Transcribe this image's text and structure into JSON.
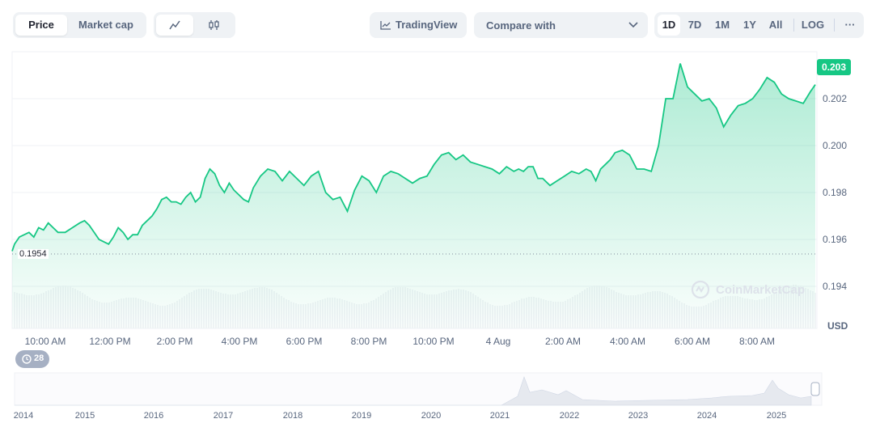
{
  "view_tabs": [
    "Price",
    "Market cap"
  ],
  "chart_type_buttons": [
    "line-chart-icon",
    "candlestick-icon"
  ],
  "tradingview_label": "TradingView",
  "compare_label": "Compare with",
  "range_tabs": [
    "1D",
    "7D",
    "1M",
    "1Y",
    "All"
  ],
  "log_label": "LOG",
  "more_label": "···",
  "colors": {
    "line": "#16c784",
    "price_tag_bg": "#16c784",
    "text": "#58667e"
  },
  "price_tag": "0.203",
  "start_price_label": "0.1954",
  "watermark": "CoinMarketCap",
  "currency": "USD",
  "events_badge": "28",
  "chart_data": {
    "type": "area",
    "y_ticks": [
      "0.202",
      "0.200",
      "0.198",
      "0.196",
      "0.194"
    ],
    "x_ticks": [
      "10:00 AM",
      "12:00 PM",
      "2:00 PM",
      "4:00 PM",
      "6:00 PM",
      "8:00 PM",
      "10:00 PM",
      "4 Aug",
      "2:00 AM",
      "4:00 AM",
      "6:00 AM",
      "8:00 AM"
    ],
    "ylim": [
      0.1935,
      0.2035
    ],
    "last_value": 0.203,
    "start_value": 0.1954,
    "series": [
      {
        "x_hours": [
          0,
          0.1,
          0.3,
          0.5,
          0.7,
          0.9,
          1.1,
          1.3,
          1.5,
          1.7,
          1.9,
          2.2,
          2.5,
          2.8,
          3.0,
          3.2,
          3.4,
          3.6,
          3.8,
          4.0,
          4.2,
          4.4,
          4.6,
          4.8,
          5.0,
          5.2,
          5.4,
          5.6,
          5.8,
          6.0,
          6.2,
          6.4,
          6.6,
          6.8,
          7.0,
          7.2,
          7.4,
          7.6,
          7.8,
          8.0,
          8.2,
          8.4,
          8.6,
          8.8,
          9.0,
          9.2,
          9.4,
          9.6,
          9.8,
          10.0,
          10.3,
          10.6,
          10.9,
          11.2,
          11.5,
          11.8,
          12.1,
          12.4,
          12.7,
          13.0,
          13.3,
          13.6,
          13.9,
          14.2,
          14.5,
          14.8,
          15.1,
          15.4,
          15.7,
          16.0,
          16.3,
          16.6,
          16.9,
          17.2,
          17.5,
          17.8,
          18.1,
          18.4,
          18.7,
          19.0,
          19.3,
          19.6,
          19.9,
          20.2,
          20.5,
          20.8,
          21.0,
          21.2,
          21.4,
          21.6,
          21.8,
          22.0,
          22.3,
          22.6,
          22.9,
          23.2,
          23.5,
          23.8,
          24.0,
          24.1,
          24.2,
          24.4,
          24.6,
          24.8,
          25.0,
          25.3,
          25.6,
          25.9,
          26.2,
          26.5,
          26.8,
          27.1,
          27.4,
          27.7,
          28.0,
          28.3,
          28.6,
          28.9,
          29.2,
          29.5,
          29.8,
          30.1,
          30.4,
          30.7,
          31.0,
          31.3,
          31.6,
          31.9,
          32.2,
          32.5,
          32.8,
          33.1,
          33.3
        ],
        "y": [
          0.1955,
          0.1958,
          0.1961,
          0.1962,
          0.1963,
          0.1961,
          0.1965,
          0.1964,
          0.1967,
          0.1965,
          0.1963,
          0.1963,
          0.1965,
          0.1967,
          0.1968,
          0.1966,
          0.1963,
          0.196,
          0.1959,
          0.1958,
          0.1961,
          0.1965,
          0.1963,
          0.196,
          0.1962,
          0.1962,
          0.1966,
          0.1968,
          0.197,
          0.1973,
          0.1977,
          0.1978,
          0.1976,
          0.1976,
          0.1975,
          0.1978,
          0.198,
          0.1976,
          0.1978,
          0.1986,
          0.199,
          0.1988,
          0.1983,
          0.198,
          0.1984,
          0.1981,
          0.1979,
          0.1977,
          0.1976,
          0.1982,
          0.1987,
          0.199,
          0.1989,
          0.1985,
          0.1989,
          0.1986,
          0.1983,
          0.1987,
          0.1989,
          0.198,
          0.1977,
          0.1978,
          0.1972,
          0.1981,
          0.1987,
          0.1985,
          0.198,
          0.1987,
          0.1989,
          0.1988,
          0.1986,
          0.1984,
          0.1986,
          0.1987,
          0.1992,
          0.1996,
          0.1997,
          0.1994,
          0.1996,
          0.1993,
          0.1992,
          0.1991,
          0.199,
          0.1988,
          0.1991,
          0.1989,
          0.199,
          0.1989,
          0.1991,
          0.1991,
          0.1986,
          0.1986,
          0.1983,
          0.1985,
          0.1987,
          0.1989,
          0.1988,
          0.199,
          0.1989,
          0.1987,
          0.1985,
          0.199,
          0.1992,
          0.1994,
          0.1997,
          0.1998,
          0.1996,
          0.199,
          0.199,
          0.1989,
          0.2,
          0.202,
          0.202,
          0.2035,
          0.2025,
          0.2022,
          0.2019,
          0.202,
          0.2016,
          0.2008,
          0.2013,
          0.2017,
          0.2018,
          0.202,
          0.2024,
          0.2029,
          0.2027,
          0.2022,
          0.202,
          0.2019,
          0.2018,
          0.2023,
          0.2026
        ]
      }
    ]
  },
  "navigator": {
    "years": [
      "2014",
      "2015",
      "2016",
      "2017",
      "2018",
      "2019",
      "2020",
      "2021",
      "2022",
      "2023",
      "2024",
      "2025"
    ]
  }
}
